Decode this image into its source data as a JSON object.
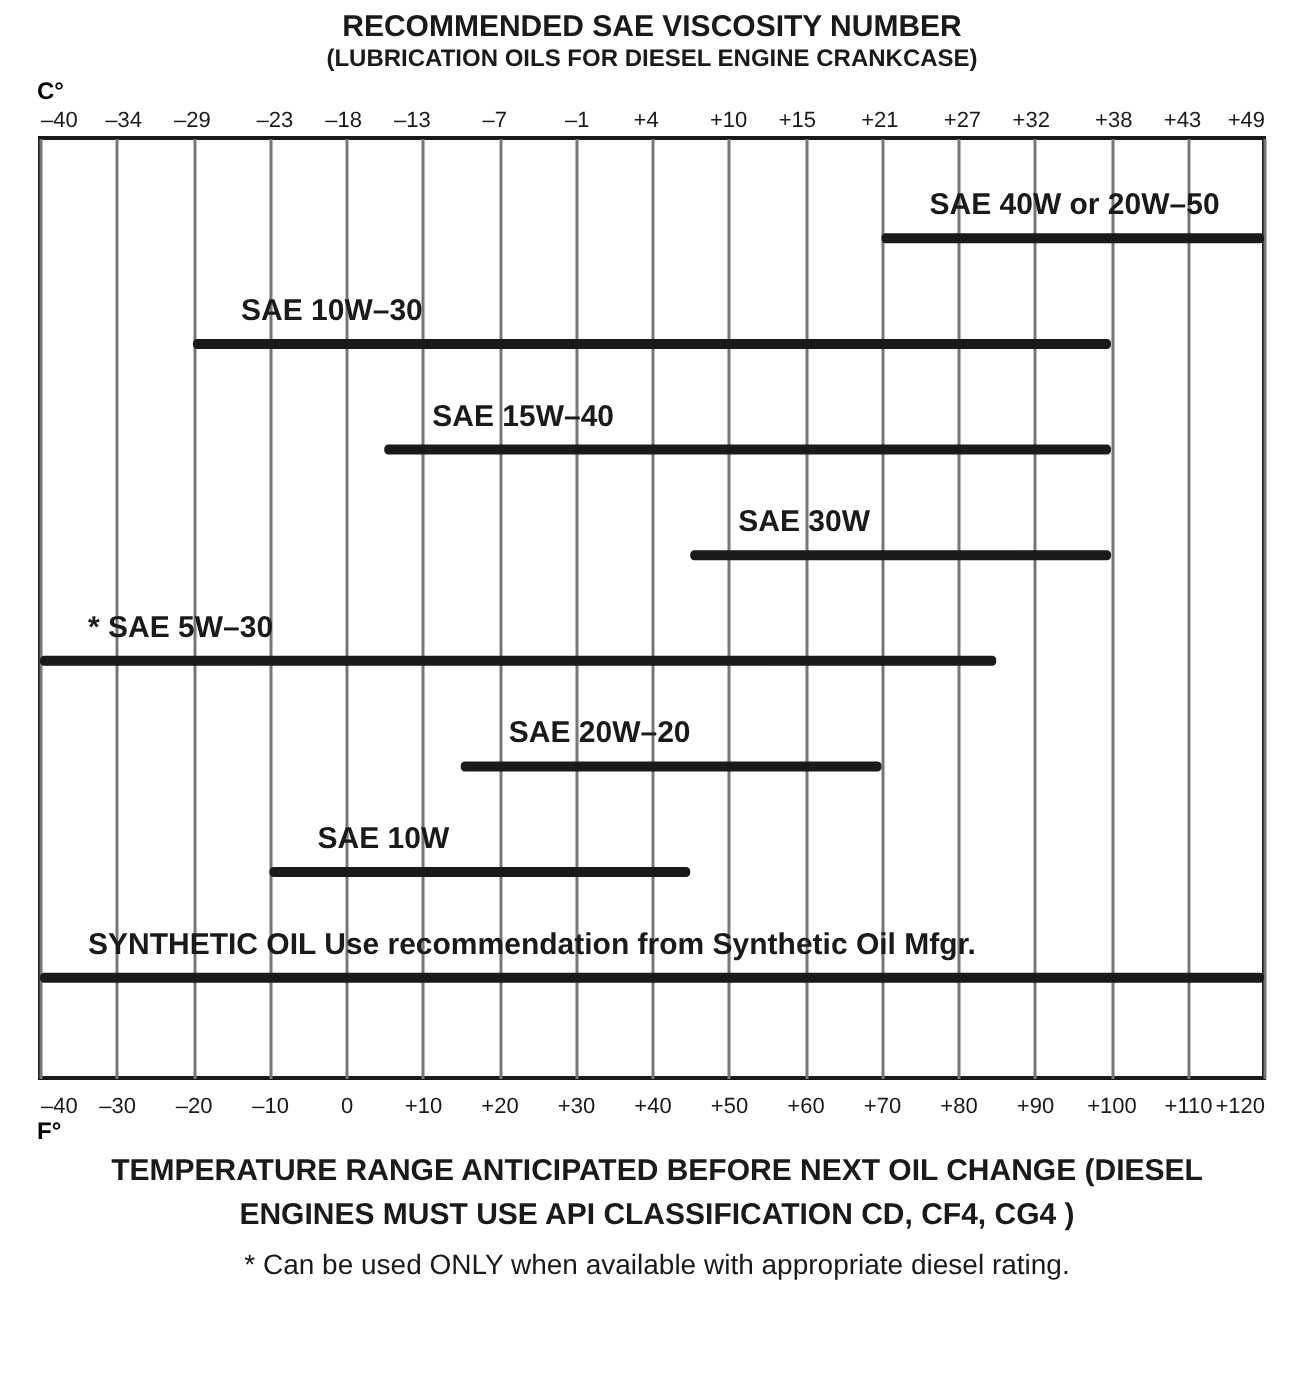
{
  "chart_data": {
    "type": "bar",
    "orientation": "horizontal",
    "title": "RECOMMENDED SAE VISCOSITY NUMBER",
    "subtitle": "(LUBRICATION OILS FOR DIESEL ENGINE CRANKCASE)",
    "categories": [
      "SAE 40W or 20W–50",
      "SAE 10W–30",
      "SAE 15W–40",
      "SAE 30W",
      "* SAE 5W–30",
      "SAE 20W–20",
      "SAE 10W",
      "SYNTHETIC OIL Use recommendation from Synthetic Oil Mfgr."
    ],
    "base": [
      70,
      -20,
      5,
      45,
      -40,
      15,
      -10,
      -40
    ],
    "values": [
      50,
      120,
      95,
      55,
      125,
      55,
      55,
      160
    ],
    "color": "#1a1a1a",
    "xlim": [
      -40,
      120
    ],
    "xticks": [
      {
        "value": -40,
        "label": "–40"
      },
      {
        "value": -30,
        "label": "–30"
      },
      {
        "value": -20,
        "label": "–20"
      },
      {
        "value": -10,
        "label": "–10"
      },
      0,
      {
        "value": 10,
        "label": "+10"
      },
      {
        "value": 20,
        "label": "+20"
      },
      {
        "value": 30,
        "label": "+30"
      },
      {
        "value": 40,
        "label": "+40"
      },
      {
        "value": 50,
        "label": "+50"
      },
      {
        "value": 60,
        "label": "+60"
      },
      {
        "value": 70,
        "label": "+70"
      },
      {
        "value": 80,
        "label": "+80"
      },
      {
        "value": 90,
        "label": "+90"
      },
      {
        "value": 100,
        "label": "+100"
      },
      {
        "value": 110,
        "label": "+110"
      },
      {
        "value": 120,
        "label": "+120"
      }
    ],
    "x2lim": [
      -40,
      49
    ],
    "x2ticks": [
      {
        "value": -40,
        "label": "–40"
      },
      {
        "value": -34,
        "label": "–34"
      },
      {
        "value": -29,
        "label": "–29"
      },
      {
        "value": -23,
        "label": "–23"
      },
      {
        "value": -18,
        "label": "–18"
      },
      {
        "value": -13,
        "label": "–13"
      },
      {
        "value": -7,
        "label": "–7"
      },
      {
        "value": -1,
        "label": "–1"
      },
      {
        "value": 4,
        "label": "+4"
      },
      {
        "value": 10,
        "label": "+10"
      },
      {
        "value": 15,
        "label": "+15"
      },
      {
        "value": 21,
        "label": "+21"
      },
      {
        "value": 27,
        "label": "+27"
      },
      {
        "value": 32,
        "label": "+32"
      },
      {
        "value": 38,
        "label": "+38"
      },
      {
        "value": 43,
        "label": "+43"
      },
      {
        "value": 49,
        "label": "+49"
      }
    ],
    "xlabel": "F°",
    "x2label": "C°",
    "grid": "x",
    "annotations": [
      "TEMPERATURE RANGE ANTICIPATED BEFORE NEXT OIL CHANGE (DIESEL ENGINES MUST USE API CLASSIFICATION CD, CF4, CG4 )",
      "* Can be used ONLY when available with appropriate diesel rating."
    ]
  }
}
